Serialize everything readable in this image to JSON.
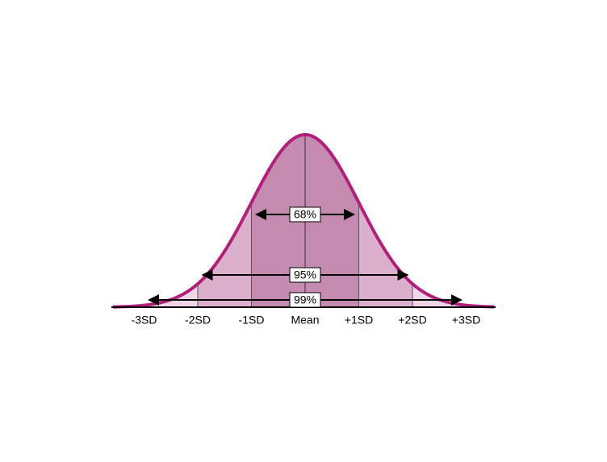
{
  "axis": {
    "labels": [
      "-3SD",
      "-2SD",
      "-1SD",
      "Mean",
      "+1SD",
      "+2SD",
      "+3SD"
    ]
  },
  "intervals": [
    {
      "label": "68%"
    },
    {
      "label": "95%"
    },
    {
      "label": "99%"
    }
  ]
}
